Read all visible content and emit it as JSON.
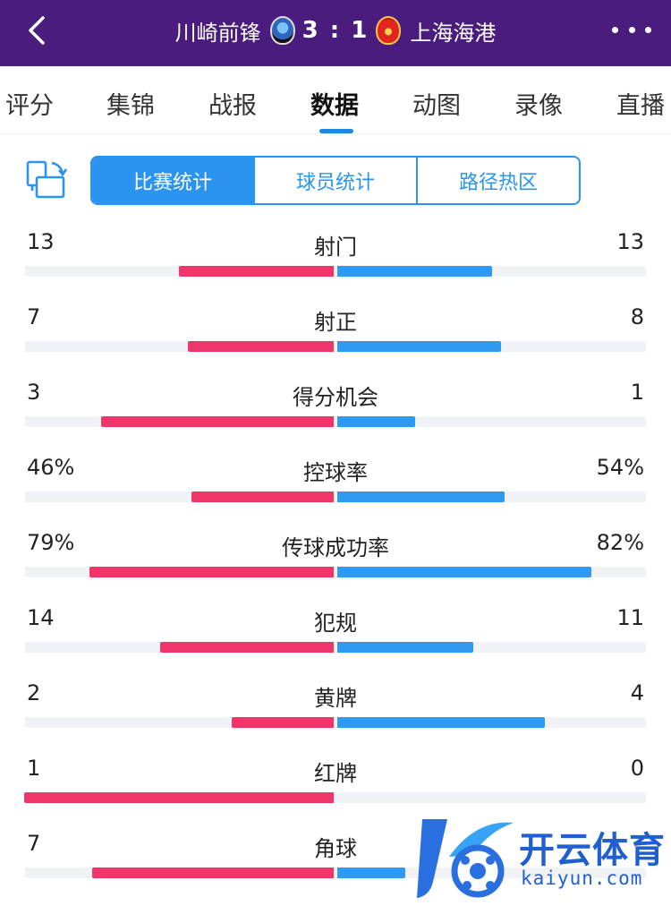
{
  "header": {
    "home_team": "川崎前锋",
    "score": "3 : 1",
    "away_team": "上海海港",
    "back_icon": "chevron-left-icon",
    "more_icon": "more-dots-icon"
  },
  "tabs": [
    {
      "label": "评分"
    },
    {
      "label": "集锦"
    },
    {
      "label": "战报"
    },
    {
      "label": "数据",
      "active": true
    },
    {
      "label": "动图"
    },
    {
      "label": "录像"
    },
    {
      "label": "直播"
    }
  ],
  "segments": [
    {
      "label": "比赛统计",
      "active": true
    },
    {
      "label": "球员统计"
    },
    {
      "label": "路径热区"
    }
  ],
  "colors": {
    "home_bar": "#f0356a",
    "away_bar": "#2f98ef",
    "header_bg": "#4a1c7e",
    "accent": "#2b93f0"
  },
  "stats": [
    {
      "name": "射门",
      "home": "13",
      "away": "13",
      "home_share": 0.5,
      "away_share": 0.5
    },
    {
      "name": "射正",
      "home": "7",
      "away": "8",
      "home_share": 0.47,
      "away_share": 0.53
    },
    {
      "name": "得分机会",
      "home": "3",
      "away": "1",
      "home_share": 0.75,
      "away_share": 0.25
    },
    {
      "name": "控球率",
      "home": "46%",
      "away": "54%",
      "home_share": 0.46,
      "away_share": 0.54
    },
    {
      "name": "传球成功率",
      "home": "79%",
      "away": "82%",
      "home_share": 0.79,
      "away_share": 0.82
    },
    {
      "name": "犯规",
      "home": "14",
      "away": "11",
      "home_share": 0.56,
      "away_share": 0.44
    },
    {
      "name": "黄牌",
      "home": "2",
      "away": "4",
      "home_share": 0.33,
      "away_share": 0.67
    },
    {
      "name": "红牌",
      "home": "1",
      "away": "0",
      "home_share": 1.0,
      "away_share": 0.0
    },
    {
      "name": "角球",
      "home": "7",
      "away": "",
      "home_share": 0.78,
      "away_share": 0.22
    }
  ],
  "watermark": {
    "brand": "开云体育",
    "url": "kaiyun.com"
  }
}
